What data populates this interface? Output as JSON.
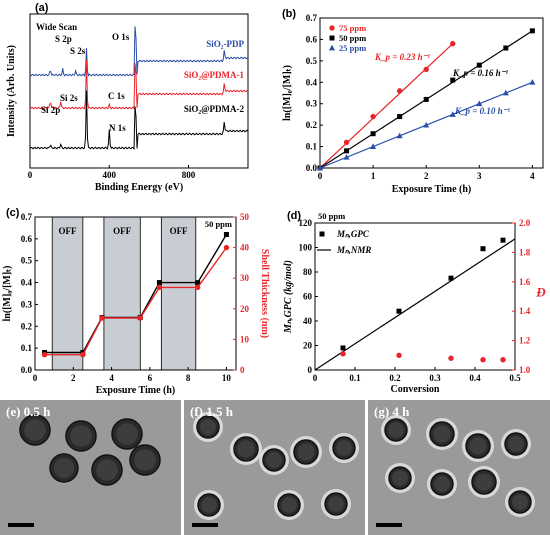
{
  "panels": [
    {
      "id": "a",
      "label": "(a)",
      "type": "xps_spectra",
      "xlabel": "Binding Energy (eV)",
      "ylabel": "Intensity (Arb. Units)",
      "xticks": [
        0,
        400,
        800
      ],
      "xlim": [
        0,
        1100
      ],
      "annotations": {
        "wide_scan": "Wide Scan",
        "s2p": "S 2p",
        "s2s": "S 2s",
        "o1s": "O 1s",
        "si2p": "Si 2p",
        "si2s": "Si 2s",
        "c1s": "C 1s",
        "n1s": "N 1s"
      },
      "series": [
        {
          "name": "SiO₂-PDP",
          "color": "#2a4ea8"
        },
        {
          "name": "SiO₂@PDMA-1",
          "color": "#e8262a"
        },
        {
          "name": "SiO₂@PDMA-2",
          "color": "#000000"
        }
      ]
    },
    {
      "id": "b",
      "label": "(b)",
      "type": "scatter_fit",
      "xlabel": "Exposure Time (h)",
      "ylabel": "ln([M]₀/[M]ₜ)",
      "xlim": [
        0,
        4.2
      ],
      "ylim": [
        0,
        0.7
      ],
      "xticks": [
        0,
        1,
        2,
        3,
        4
      ],
      "yticks": [
        0.0,
        0.1,
        0.2,
        0.3,
        0.4,
        0.5,
        0.6,
        0.7
      ],
      "series": [
        {
          "name": "75 ppm",
          "color": "#e8262a",
          "marker": "circle",
          "kp": "K_p = 0.23 h⁻¹",
          "x": [
            0,
            0.5,
            1,
            1.5,
            2,
            2.5
          ],
          "y": [
            0,
            0.12,
            0.24,
            0.36,
            0.46,
            0.58
          ]
        },
        {
          "name": "50 ppm",
          "color": "#000000",
          "marker": "square",
          "kp": "K_p = 0.16 h⁻¹",
          "x": [
            0,
            0.5,
            1,
            1.5,
            2,
            2.5,
            3,
            3.5,
            4
          ],
          "y": [
            0,
            0.08,
            0.16,
            0.24,
            0.32,
            0.41,
            0.48,
            0.56,
            0.64
          ]
        },
        {
          "name": "25 ppm",
          "color": "#2a4ea8",
          "marker": "triangle",
          "kp": "K_p = 0.10 h⁻¹",
          "x": [
            0,
            0.5,
            1,
            1.5,
            2,
            2.5,
            3,
            3.5,
            4
          ],
          "y": [
            0,
            0.05,
            0.1,
            0.15,
            0.2,
            0.25,
            0.3,
            0.35,
            0.4
          ]
        }
      ]
    },
    {
      "id": "c",
      "label": "(c)",
      "type": "dual_axis_step",
      "xlabel": "Exposure Time (h)",
      "ylabel_left": "ln([M]₀/[M]ₜ)",
      "ylabel_right": "Shell Thickness (nm)",
      "xlim": [
        0,
        10.5
      ],
      "ylim_left": [
        0,
        0.7
      ],
      "ylim_right": [
        0,
        50
      ],
      "xticks": [
        0,
        2,
        4,
        6,
        8,
        10
      ],
      "yticks_left": [
        0.0,
        0.1,
        0.2,
        0.3,
        0.4,
        0.5,
        0.6,
        0.7
      ],
      "yticks_right": [
        0,
        10,
        20,
        30,
        40,
        50
      ],
      "concentration": "50 ppm",
      "off_label": "OFF",
      "off_regions": [
        [
          0.9,
          2.5
        ],
        [
          3.6,
          5.5
        ],
        [
          6.6,
          8.4
        ]
      ],
      "series": [
        {
          "name": "ln([M]₀/[M]ₜ)",
          "axis": "left",
          "color": "#000000",
          "marker": "square",
          "x": [
            0.5,
            2.5,
            3.5,
            5.5,
            6.5,
            8.5,
            10
          ],
          "y": [
            0.08,
            0.08,
            0.24,
            0.24,
            0.4,
            0.4,
            0.62
          ]
        },
        {
          "name": "Shell Thickness (nm)",
          "axis": "right",
          "color": "#e8262a",
          "marker": "circle",
          "x": [
            0.5,
            2.5,
            3.5,
            5.5,
            6.5,
            8.5,
            10
          ],
          "y": [
            5,
            5,
            17,
            17,
            27,
            27,
            40
          ]
        }
      ]
    },
    {
      "id": "d",
      "label": "(d)",
      "type": "dual_axis_scatter",
      "xlabel": "Conversion",
      "ylabel_left": "Mₙ,GPC (kg/mol)",
      "ylabel_right": "Đ",
      "xlim": [
        0,
        0.5
      ],
      "ylim_left": [
        0,
        120
      ],
      "ylim_right": [
        1.0,
        2.0
      ],
      "xticks": [
        0.0,
        0.1,
        0.2,
        0.3,
        0.4,
        0.5
      ],
      "yticks_left": [
        0,
        20,
        40,
        60,
        80,
        100,
        120
      ],
      "yticks_right": [
        1.0,
        1.2,
        1.4,
        1.6,
        1.8,
        2.0
      ],
      "concentration": "50 ppm",
      "legend": [
        "Mₙ,GPC",
        "Mₙ,NMR"
      ],
      "series": [
        {
          "name": "Mₙ,GPC",
          "axis": "left",
          "color": "#000000",
          "marker": "square",
          "x": [
            0.07,
            0.21,
            0.34,
            0.42,
            0.47
          ],
          "y": [
            18,
            48,
            75,
            99,
            106
          ]
        },
        {
          "name": "Mₙ,NMR",
          "axis": "left",
          "color": "#000000",
          "marker": "line",
          "x": [
            0.0,
            0.5
          ],
          "y": [
            0,
            107
          ]
        },
        {
          "name": "Đ",
          "axis": "right",
          "color": "#e8262a",
          "marker": "circle",
          "x": [
            0.07,
            0.21,
            0.34,
            0.42,
            0.47
          ],
          "y": [
            1.11,
            1.1,
            1.08,
            1.07,
            1.07
          ]
        }
      ]
    }
  ],
  "tem_images": [
    {
      "label": "(e) 0.5 h"
    },
    {
      "label": "(f) 1.5 h"
    },
    {
      "label": "(g) 4 h"
    }
  ]
}
